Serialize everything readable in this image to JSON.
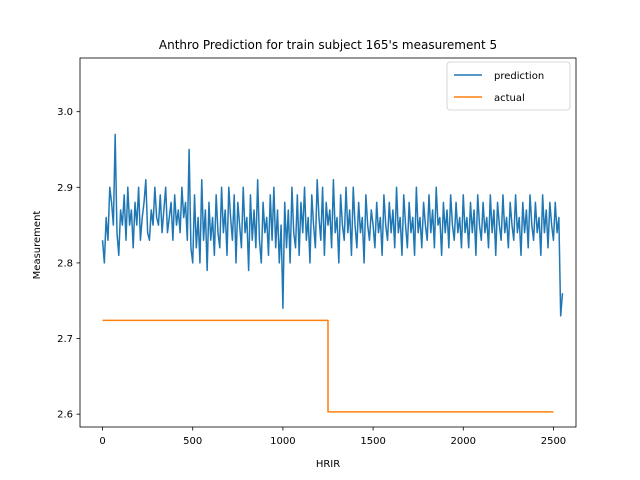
{
  "chart_data": {
    "type": "line",
    "title": "Anthro Prediction for train subject 165's measurement 5",
    "xlabel": "HRIR",
    "ylabel": "Measurement",
    "xlim": [
      -125,
      2625
    ],
    "ylim": [
      2.583,
      3.071
    ],
    "xticks": [
      0,
      500,
      1000,
      1500,
      2000,
      2500
    ],
    "xtick_labels": [
      "0",
      "500",
      "1000",
      "1500",
      "2000",
      "2500"
    ],
    "yticks": [
      2.6,
      2.7,
      2.8,
      2.9,
      3.0
    ],
    "ytick_labels": [
      "2.6",
      "2.7",
      "2.8",
      "2.9",
      "3.0"
    ],
    "grid": false,
    "legend_position": "top-right",
    "series": [
      {
        "name": "prediction",
        "color": "#1f77b4",
        "x_start": 0,
        "x_step": 10,
        "values": [
          2.83,
          2.8,
          2.86,
          2.83,
          2.9,
          2.88,
          2.85,
          2.97,
          2.84,
          2.81,
          2.87,
          2.85,
          2.89,
          2.83,
          2.9,
          2.85,
          2.87,
          2.82,
          2.88,
          2.85,
          2.9,
          2.83,
          2.86,
          2.88,
          2.91,
          2.84,
          2.83,
          2.87,
          2.85,
          2.9,
          2.86,
          2.85,
          2.89,
          2.84,
          2.87,
          2.9,
          2.84,
          2.86,
          2.88,
          2.83,
          2.89,
          2.85,
          2.87,
          2.84,
          2.9,
          2.86,
          2.88,
          2.83,
          2.95,
          2.82,
          2.8,
          2.89,
          2.82,
          2.86,
          2.8,
          2.91,
          2.83,
          2.87,
          2.79,
          2.88,
          2.83,
          2.86,
          2.81,
          2.89,
          2.84,
          2.82,
          2.9,
          2.84,
          2.87,
          2.81,
          2.9,
          2.86,
          2.83,
          2.89,
          2.8,
          2.88,
          2.85,
          2.82,
          2.9,
          2.84,
          2.86,
          2.79,
          2.89,
          2.83,
          2.87,
          2.82,
          2.91,
          2.83,
          2.8,
          2.88,
          2.84,
          2.86,
          2.81,
          2.89,
          2.83,
          2.9,
          2.82,
          2.87,
          2.8,
          2.85,
          2.74,
          2.88,
          2.82,
          2.87,
          2.8,
          2.9,
          2.84,
          2.82,
          2.89,
          2.81,
          2.88,
          2.84,
          2.9,
          2.83,
          2.86,
          2.8,
          2.89,
          2.85,
          2.82,
          2.91,
          2.86,
          2.83,
          2.9,
          2.81,
          2.88,
          2.85,
          2.87,
          2.82,
          2.91,
          2.84,
          2.86,
          2.8,
          2.89,
          2.85,
          2.83,
          2.9,
          2.84,
          2.87,
          2.81,
          2.9,
          2.85,
          2.82,
          2.88,
          2.84,
          2.86,
          2.8,
          2.89,
          2.85,
          2.83,
          2.87,
          2.85,
          2.82,
          2.88,
          2.84,
          2.86,
          2.81,
          2.89,
          2.85,
          2.83,
          2.88,
          2.84,
          2.87,
          2.82,
          2.9,
          2.84,
          2.86,
          2.81,
          2.89,
          2.85,
          2.82,
          2.88,
          2.84,
          2.86,
          2.81,
          2.9,
          2.84,
          2.86,
          2.82,
          2.88,
          2.85,
          2.83,
          2.89,
          2.84,
          2.87,
          2.82,
          2.9,
          2.85,
          2.86,
          2.81,
          2.88,
          2.84,
          2.87,
          2.82,
          2.89,
          2.85,
          2.83,
          2.88,
          2.84,
          2.86,
          2.82,
          2.89,
          2.84,
          2.86,
          2.82,
          2.88,
          2.84,
          2.87,
          2.81,
          2.89,
          2.85,
          2.83,
          2.88,
          2.84,
          2.86,
          2.82,
          2.89,
          2.84,
          2.87,
          2.81,
          2.88,
          2.85,
          2.83,
          2.89,
          2.84,
          2.86,
          2.82,
          2.88,
          2.85,
          2.83,
          2.89,
          2.84,
          2.86,
          2.81,
          2.88,
          2.84,
          2.87,
          2.82,
          2.89,
          2.85,
          2.83,
          2.88,
          2.84,
          2.86,
          2.81,
          2.89,
          2.84,
          2.87,
          2.82,
          2.88,
          2.85,
          2.83,
          2.88,
          2.84,
          2.86,
          2.73,
          2.76
        ]
      },
      {
        "name": "actual",
        "color": "#ff7f0e",
        "points": [
          [
            0,
            2.724
          ],
          [
            1250,
            2.724
          ],
          [
            1250,
            2.603
          ],
          [
            2500,
            2.603
          ]
        ]
      }
    ]
  }
}
